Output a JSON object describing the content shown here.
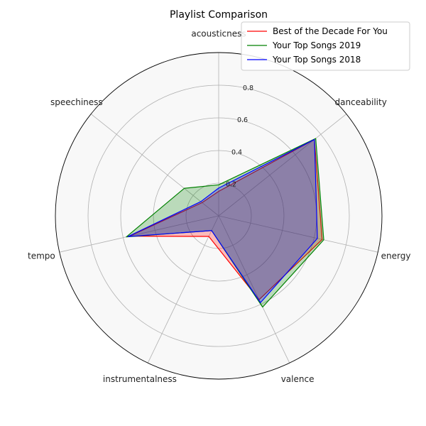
{
  "chart_data": {
    "type": "radar",
    "title": "Playlist Comparison",
    "axes": [
      "acousticness",
      "danceability",
      "energy",
      "valence",
      "instrumentalness",
      "tempo",
      "speechiness"
    ],
    "rlim": [
      0,
      1
    ],
    "rticks": [
      0.2,
      0.4,
      0.6,
      0.8
    ],
    "rtick_labels": [
      "0.2",
      "0.4",
      "0.6",
      "0.8"
    ],
    "grid": true,
    "legend": "top-right",
    "series": [
      {
        "name": "Best of the Decade For You",
        "color": "#ff0000",
        "fill": "#ff0000",
        "values": [
          0.15,
          0.75,
          0.65,
          0.57,
          0.14,
          0.56,
          0.13
        ]
      },
      {
        "name": "Your Top Songs 2019",
        "color": "#008000",
        "fill": "#008000",
        "values": [
          0.19,
          0.76,
          0.66,
          0.62,
          0.1,
          0.58,
          0.27
        ]
      },
      {
        "name": "Your Top Songs 2018",
        "color": "#0000ff",
        "fill": "#0000ff",
        "values": [
          0.17,
          0.75,
          0.62,
          0.59,
          0.1,
          0.57,
          0.14
        ]
      }
    ]
  }
}
